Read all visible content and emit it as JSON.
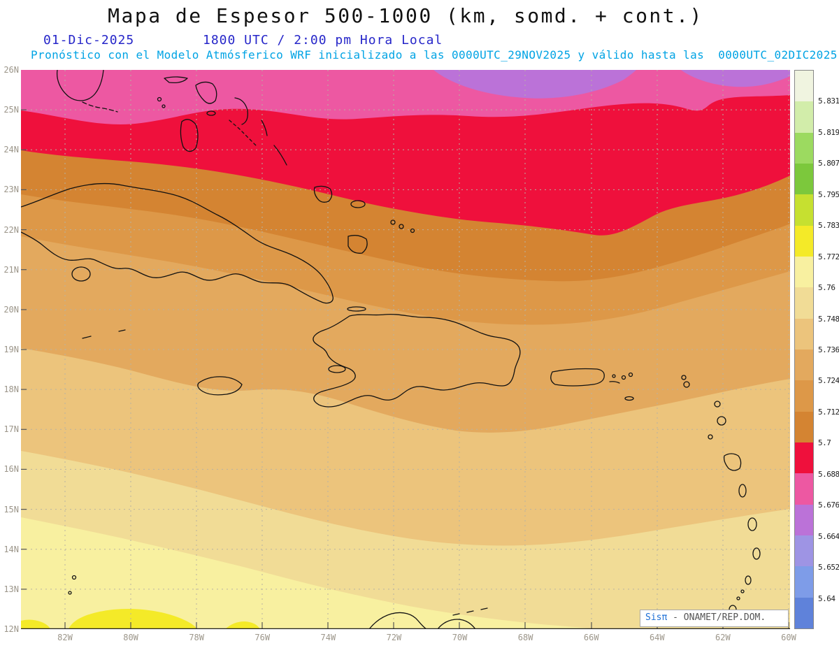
{
  "header": {
    "title": "Mapa de Espesor 500-1000 (km, somd. + cont.)",
    "date": "01-Dic-2025",
    "time": "1800 UTC / 2:00 pm Hora Local",
    "forecast_line": "Pronóstico con el Modelo Atmósferico WRF inicializado a las 0000UTC_29NOV2025 y válido hasta las  0000UTC_02DIC2025"
  },
  "map": {
    "lat_labels": [
      "26N",
      "25N",
      "24N",
      "23N",
      "22N",
      "21N",
      "20N",
      "19N",
      "18N",
      "17N",
      "16N",
      "15N",
      "14N",
      "13N",
      "12N"
    ],
    "lon_labels": [
      "82W",
      "80W",
      "78W",
      "76W",
      "74W",
      "72W",
      "70W",
      "68W",
      "66W",
      "64W",
      "62W",
      "60W"
    ],
    "band_colors": {
      "violet": "#bb72d8",
      "pink": "#ed58a2",
      "red": "#ef103c",
      "b5712": "#d48432",
      "b5724": "#dd9848",
      "b5736": "#e3a95e",
      "b5748": "#ecc47c",
      "b5760": "#f1dc96",
      "b5772": "#f8f0a0",
      "yellow": "#f4ea28"
    },
    "coast_color": "#111111",
    "grid_color": "#b8b2a2"
  },
  "colorbar": {
    "labels": [
      "5.831",
      "5.819",
      "5.807",
      "5.795",
      "5.783",
      "5.772",
      "5.76",
      "5.748",
      "5.736",
      "5.724",
      "5.712",
      "5.7",
      "5.688",
      "5.676",
      "5.664",
      "5.652",
      "5.64"
    ],
    "segment_colors": [
      "#f0f4e0",
      "#d2edaa",
      "#9cda60",
      "#7cc83c",
      "#c6e030",
      "#f4ea28",
      "#f8f0a0",
      "#f1dc96",
      "#ecc47c",
      "#e3a95e",
      "#dd9848",
      "#d48432",
      "#ef103c",
      "#ed58a2",
      "#bb72d8",
      "#9e94e4",
      "#7e9ce8",
      "#5f82da"
    ]
  },
  "attribution": {
    "brand": "Sisπ",
    "text": " - ONAMET/REP.DOM."
  }
}
